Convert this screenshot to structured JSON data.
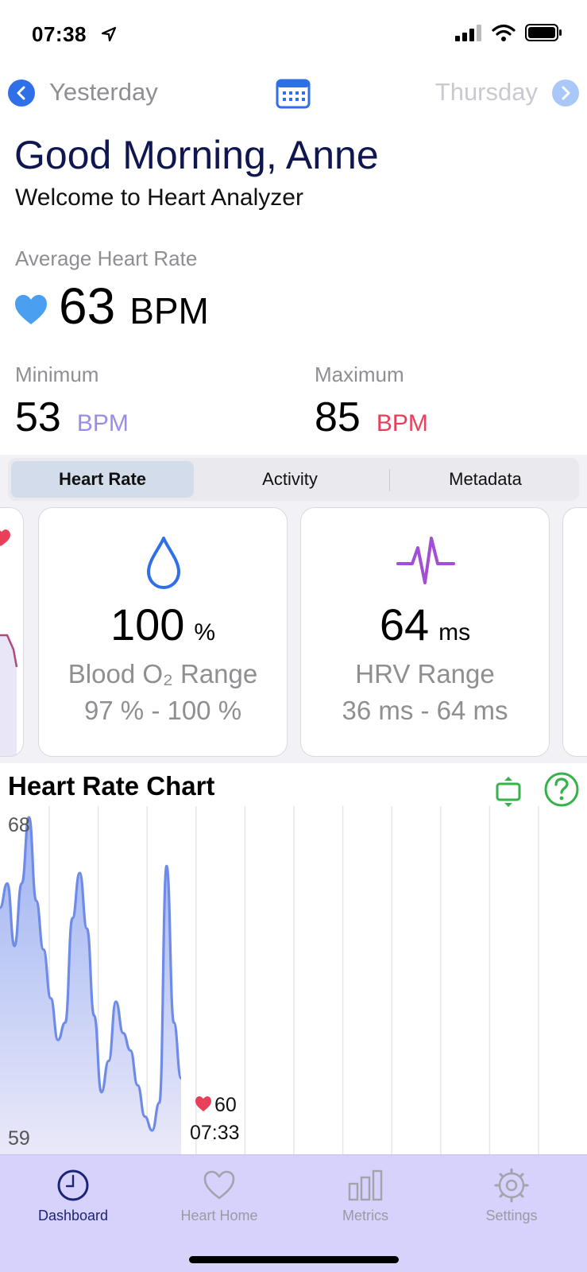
{
  "status_bar": {
    "time": "07:38"
  },
  "day_nav": {
    "prev_label": "Yesterday",
    "next_label": "Thursday"
  },
  "greeting": {
    "title": "Good Morning, Anne",
    "subtitle": "Welcome to Heart Analyzer"
  },
  "average": {
    "label": "Average Heart Rate",
    "value": "63",
    "unit": "BPM"
  },
  "minimum": {
    "label": "Minimum",
    "value": "53",
    "unit": "BPM",
    "unit_color": "#9b8ce8"
  },
  "maximum": {
    "label": "Maximum",
    "value": "85",
    "unit": "BPM",
    "unit_color": "#e8405a"
  },
  "tabs": {
    "segments": [
      {
        "label": "Heart Rate",
        "active": true
      },
      {
        "label": "Activity",
        "active": false
      },
      {
        "label": "Metadata",
        "active": false
      }
    ]
  },
  "cards": [
    {
      "icon": "drop-icon",
      "value": "100",
      "unit": "%",
      "title": "Blood O₂ Range",
      "range": "97 % - 100 %",
      "icon_color": "#2f6fe8"
    },
    {
      "icon": "waveform-icon",
      "value": "64",
      "unit": "ms",
      "title": "HRV Range",
      "range": "36 ms - 64 ms",
      "icon_color": "#a24fd6"
    }
  ],
  "chart_section": {
    "title": "Heart Rate Chart",
    "accent": "#35b24a"
  },
  "chart_data": {
    "type": "area",
    "title": "Heart Rate Chart",
    "xlabel": "",
    "ylabel": "",
    "ylim": [
      59,
      68
    ],
    "y_ticks": [
      "68",
      "59"
    ],
    "series": [
      {
        "values": [
          65.4,
          66.1,
          64.3,
          66.1,
          68.0,
          65.6,
          64.2,
          62.8,
          61.6,
          62.1,
          65.1,
          66.4,
          64.8,
          62.3,
          60.1,
          61.0,
          62.7,
          61.8,
          61.3,
          60.3,
          59.4,
          59.0,
          59.8,
          66.6,
          62.1,
          60.5
        ]
      }
    ],
    "callout": {
      "value": "60",
      "time": "07:33"
    },
    "fill_color": "#b8bff0",
    "line_color": "#6f8be8"
  },
  "tab_bar": {
    "items": [
      {
        "label": "Dashboard",
        "icon": "clock-icon",
        "active": true
      },
      {
        "label": "Heart Home",
        "icon": "heart-outline-icon",
        "active": false
      },
      {
        "label": "Metrics",
        "icon": "bars-icon",
        "active": false
      },
      {
        "label": "Settings",
        "icon": "gear-icon",
        "active": false
      }
    ]
  }
}
